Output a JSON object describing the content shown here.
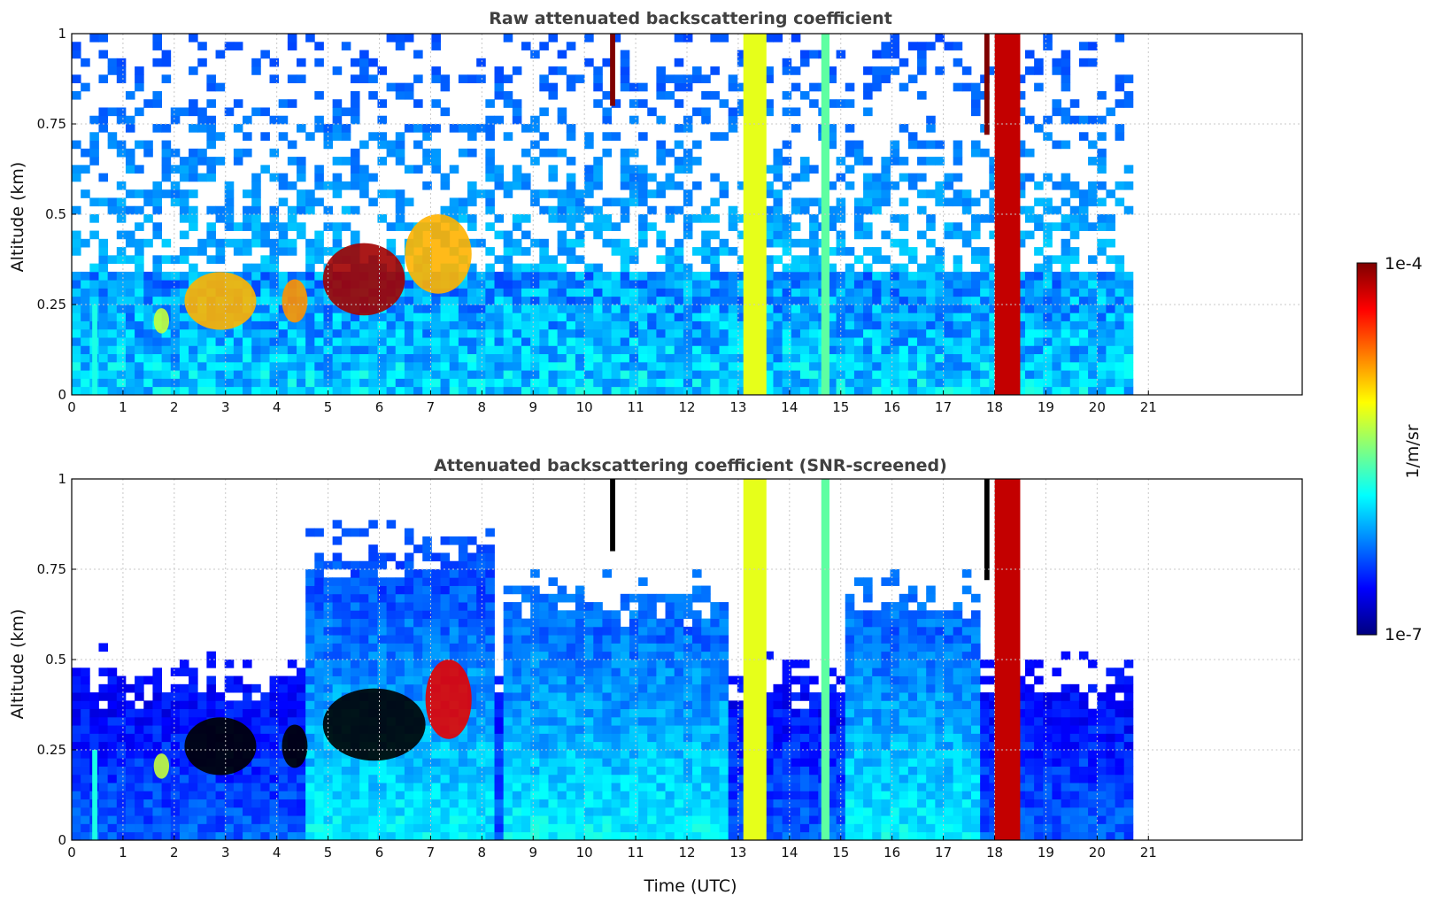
{
  "colors": {
    "jet": [
      "#00007f",
      "#0000ff",
      "#0080ff",
      "#00ffff",
      "#80ff80",
      "#ffff00",
      "#ff8000",
      "#ff0000",
      "#7f0000"
    ],
    "clip_color": "#000000",
    "grid": "#c8c8c8",
    "title_color": "#404040"
  },
  "chart_data": [
    {
      "type": "heatmap",
      "title": "Raw attenuated backscattering coefficient",
      "xlabel": "",
      "ylabel": "Altitude (km)",
      "xlim": [
        0,
        24
      ],
      "ylim": [
        0,
        1
      ],
      "xticks": [
        "0",
        "1",
        "2",
        "3",
        "4",
        "5",
        "6",
        "7",
        "8",
        "9",
        "10",
        "11",
        "12",
        "13",
        "14",
        "15",
        "16",
        "17",
        "18",
        "19",
        "20",
        "21"
      ],
      "yticks": [
        "0",
        "0.25",
        "0.5",
        "0.75",
        "1"
      ],
      "grid": true,
      "data_end_utc": 20.7,
      "screened": false,
      "features": [
        {
          "kind": "cloud",
          "t": [
            4.9,
            6.5
          ],
          "alt": [
            0.22,
            0.42
          ],
          "log10": -4.1
        },
        {
          "kind": "cloud",
          "t": [
            4.1,
            4.6
          ],
          "alt": [
            0.2,
            0.32
          ],
          "log10": -4.8
        },
        {
          "kind": "cloud",
          "t": [
            2.2,
            3.6
          ],
          "alt": [
            0.18,
            0.34
          ],
          "log10": -4.9
        },
        {
          "kind": "cloud",
          "t": [
            6.5,
            7.8
          ],
          "alt": [
            0.28,
            0.5
          ],
          "log10": -4.9
        },
        {
          "kind": "cloud",
          "t": [
            1.6,
            1.9
          ],
          "alt": [
            0.17,
            0.24
          ],
          "log10": -5.3
        },
        {
          "kind": "column",
          "t": [
            13.1,
            13.55
          ],
          "log10": -5.2
        },
        {
          "kind": "column",
          "t": [
            14.62,
            14.78
          ],
          "log10": -5.6
        },
        {
          "kind": "column",
          "t": [
            18.0,
            18.5
          ],
          "log10": -4.2
        },
        {
          "kind": "streak",
          "t": [
            0.4,
            0.5
          ],
          "alt": [
            0.0,
            0.25
          ],
          "log10": -5.8
        },
        {
          "kind": "virga",
          "t": [
            10.5,
            10.6
          ],
          "alt": [
            0.8,
            1.0
          ],
          "log10": -4.0
        },
        {
          "kind": "virga",
          "t": [
            17.8,
            17.9
          ],
          "alt": [
            0.72,
            1.0
          ],
          "log10": -4.0
        }
      ]
    },
    {
      "type": "heatmap",
      "title": "Attenuated backscattering coefficient (SNR-screened)",
      "xlabel": "Time (UTC)",
      "ylabel": "Altitude (km)",
      "xlim": [
        0,
        24
      ],
      "ylim": [
        0,
        1
      ],
      "xticks": [
        "0",
        "1",
        "2",
        "3",
        "4",
        "5",
        "6",
        "7",
        "8",
        "9",
        "10",
        "11",
        "12",
        "13",
        "14",
        "15",
        "16",
        "17",
        "18",
        "19",
        "20",
        "21"
      ],
      "yticks": [
        "0",
        "0.25",
        "0.5",
        "0.75",
        "1"
      ],
      "grid": true,
      "data_end_utc": 20.7,
      "screened": true,
      "features": [
        {
          "kind": "cloud",
          "t": [
            4.9,
            6.9
          ],
          "alt": [
            0.22,
            0.42
          ],
          "log10": -3.7
        },
        {
          "kind": "cloud",
          "t": [
            4.1,
            4.6
          ],
          "alt": [
            0.2,
            0.32
          ],
          "log10": -3.8
        },
        {
          "kind": "cloud",
          "t": [
            2.2,
            3.6
          ],
          "alt": [
            0.18,
            0.34
          ],
          "log10": -3.8
        },
        {
          "kind": "cloud",
          "t": [
            6.9,
            7.8
          ],
          "alt": [
            0.28,
            0.5
          ],
          "log10": -4.3
        },
        {
          "kind": "cloud",
          "t": [
            1.6,
            1.9
          ],
          "alt": [
            0.17,
            0.24
          ],
          "log10": -5.3
        },
        {
          "kind": "column",
          "t": [
            13.1,
            13.55
          ],
          "log10": -5.2
        },
        {
          "kind": "column",
          "t": [
            14.62,
            14.78
          ],
          "log10": -5.6
        },
        {
          "kind": "column",
          "t": [
            18.0,
            18.5
          ],
          "log10": -4.2
        },
        {
          "kind": "streak",
          "t": [
            0.4,
            0.5
          ],
          "alt": [
            0.0,
            0.25
          ],
          "log10": -5.8
        },
        {
          "kind": "virga",
          "t": [
            10.5,
            10.6
          ],
          "alt": [
            0.8,
            1.0
          ],
          "log10": -3.6
        },
        {
          "kind": "virga",
          "t": [
            17.8,
            17.9
          ],
          "alt": [
            0.72,
            1.0
          ],
          "log10": -3.6
        }
      ]
    }
  ],
  "colorbar": {
    "label": "1/m/sr",
    "max_label": "1e-4",
    "min_label": "1e-7",
    "log10_range": [
      -7,
      -4
    ]
  }
}
